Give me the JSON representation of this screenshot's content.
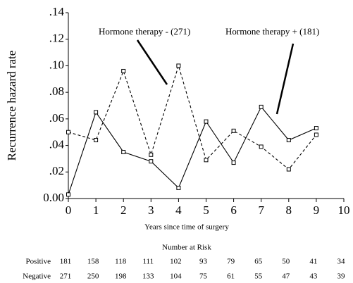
{
  "chart_data": {
    "type": "line",
    "y_label": "Recurrence hazard rate",
    "x_label": "Years since time of surgery",
    "x": [
      0,
      1,
      2,
      3,
      4,
      5,
      6,
      7,
      8,
      9
    ],
    "series": [
      {
        "name": "Hormone therapy - (271)",
        "color": "#000000",
        "dash": true,
        "values": [
          0.05,
          0.044,
          0.096,
          0.033,
          0.1,
          0.029,
          0.051,
          0.039,
          0.022,
          0.048
        ]
      },
      {
        "name": "Hormone therapy + (181)",
        "color": "#000000",
        "dash": false,
        "values": [
          0.003,
          0.065,
          0.035,
          0.028,
          0.008,
          0.058,
          0.027,
          0.069,
          0.044,
          0.053
        ]
      }
    ],
    "xlim": [
      0,
      10
    ],
    "xticks": [
      0,
      1,
      2,
      3,
      4,
      5,
      6,
      7,
      8,
      9,
      10
    ],
    "ylim": [
      0,
      0.14
    ],
    "yticks": [
      {
        "value": 0,
        "label": "0.00"
      },
      {
        "value": 0.02,
        "label": ".02"
      },
      {
        "value": 0.04,
        "label": ".04"
      },
      {
        "value": 0.06,
        "label": ".06"
      },
      {
        "value": 0.08,
        "label": ".08"
      },
      {
        "value": 0.1,
        "label": ".10"
      },
      {
        "value": 0.12,
        "label": ".12"
      },
      {
        "value": 0.14,
        "label": ".14"
      }
    ],
    "grid": false,
    "risk_table": {
      "title": "Number at Risk",
      "rows": [
        {
          "label": "Positive",
          "values": [
            181,
            158,
            118,
            111,
            102,
            93,
            79,
            65,
            50,
            41,
            34
          ]
        },
        {
          "label": "Negative",
          "values": [
            271,
            250,
            198,
            133,
            104,
            75,
            61,
            55,
            47,
            43,
            39
          ]
        }
      ]
    }
  }
}
